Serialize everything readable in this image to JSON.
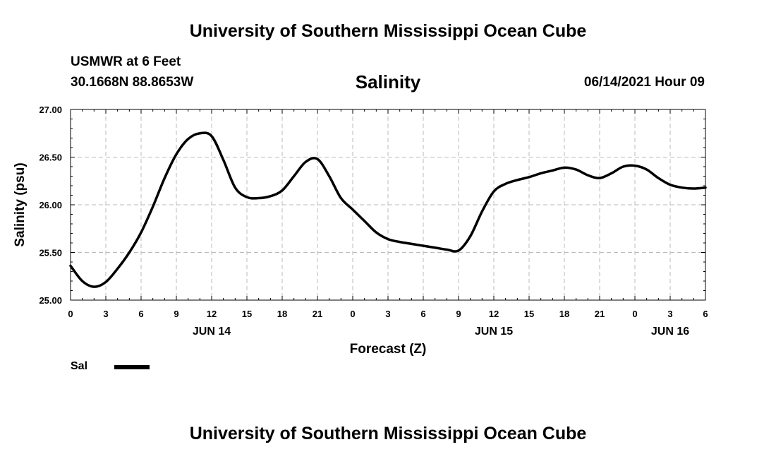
{
  "header": {
    "title": "University of Southern Mississippi Ocean Cube",
    "station_name": "USMWR at 6 Feet",
    "station_coords": "30.1668N  88.8653W",
    "chart_title": "Salinity",
    "forecast_time": "06/14/2021 Hour 09"
  },
  "footer": {
    "title": "University of Southern Mississippi Ocean Cube"
  },
  "legend": {
    "label": "Sal"
  },
  "chart_data": {
    "type": "line",
    "title": "Salinity",
    "xlabel": "Forecast (Z)",
    "ylabel": "Salinity (psu)",
    "x_unit": "hours from 2021-06-14 00Z",
    "xlim": [
      0,
      54
    ],
    "ylim": [
      25.0,
      27.0
    ],
    "grid": true,
    "legend_position": "bottom-left",
    "y_ticks": [
      "25.00",
      "25.50",
      "26.00",
      "26.50",
      "27.00"
    ],
    "x_ticks": [
      {
        "x": 0,
        "label": "0"
      },
      {
        "x": 3,
        "label": "3"
      },
      {
        "x": 6,
        "label": "6"
      },
      {
        "x": 9,
        "label": "9"
      },
      {
        "x": 12,
        "label": "12"
      },
      {
        "x": 15,
        "label": "15"
      },
      {
        "x": 18,
        "label": "18"
      },
      {
        "x": 21,
        "label": "21"
      },
      {
        "x": 24,
        "label": "0"
      },
      {
        "x": 27,
        "label": "3"
      },
      {
        "x": 30,
        "label": "6"
      },
      {
        "x": 33,
        "label": "9"
      },
      {
        "x": 36,
        "label": "12"
      },
      {
        "x": 39,
        "label": "15"
      },
      {
        "x": 42,
        "label": "18"
      },
      {
        "x": 45,
        "label": "21"
      },
      {
        "x": 48,
        "label": "0"
      },
      {
        "x": 51,
        "label": "3"
      },
      {
        "x": 54,
        "label": "6"
      }
    ],
    "day_labels": [
      {
        "x": 12,
        "label": "JUN 14"
      },
      {
        "x": 36,
        "label": "JUN 15"
      },
      {
        "x": 51,
        "label": "JUN 16"
      }
    ],
    "series": [
      {
        "name": "Sal",
        "color": "#000000",
        "points": [
          [
            0,
            25.36
          ],
          [
            1,
            25.2
          ],
          [
            2,
            25.14
          ],
          [
            3,
            25.19
          ],
          [
            4,
            25.33
          ],
          [
            5,
            25.5
          ],
          [
            6,
            25.71
          ],
          [
            7,
            25.98
          ],
          [
            8,
            26.28
          ],
          [
            9,
            26.53
          ],
          [
            10,
            26.69
          ],
          [
            11,
            26.75
          ],
          [
            12,
            26.72
          ],
          [
            13,
            26.47
          ],
          [
            14,
            26.18
          ],
          [
            15,
            26.08
          ],
          [
            16,
            26.07
          ],
          [
            17,
            26.09
          ],
          [
            18,
            26.15
          ],
          [
            19,
            26.3
          ],
          [
            20,
            26.45
          ],
          [
            21,
            26.48
          ],
          [
            22,
            26.3
          ],
          [
            23,
            26.07
          ],
          [
            24,
            25.95
          ],
          [
            25,
            25.83
          ],
          [
            26,
            25.71
          ],
          [
            27,
            25.64
          ],
          [
            28,
            25.61
          ],
          [
            29,
            25.59
          ],
          [
            30,
            25.57
          ],
          [
            31,
            25.55
          ],
          [
            32,
            25.53
          ],
          [
            33,
            25.52
          ],
          [
            34,
            25.67
          ],
          [
            35,
            25.93
          ],
          [
            36,
            26.14
          ],
          [
            37,
            26.22
          ],
          [
            38,
            26.26
          ],
          [
            39,
            26.29
          ],
          [
            40,
            26.33
          ],
          [
            41,
            26.36
          ],
          [
            42,
            26.39
          ],
          [
            43,
            26.37
          ],
          [
            44,
            26.31
          ],
          [
            45,
            26.28
          ],
          [
            46,
            26.33
          ],
          [
            47,
            26.4
          ],
          [
            48,
            26.41
          ],
          [
            49,
            26.37
          ],
          [
            50,
            26.28
          ],
          [
            51,
            26.21
          ],
          [
            52,
            26.18
          ],
          [
            53,
            26.17
          ],
          [
            54,
            26.18
          ]
        ]
      }
    ]
  }
}
